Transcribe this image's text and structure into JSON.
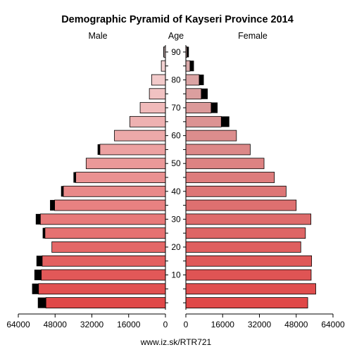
{
  "chart_data": {
    "type": "bar",
    "title": "Demographic Pyramid of Kayseri Province 2014",
    "left_label": "Male",
    "center_label": "Age",
    "right_label": "Female",
    "footer": "www.iz.sk/RTR721",
    "x_ticks": [
      "64000",
      "48000",
      "32000",
      "16000",
      "0",
      "16000",
      "32000",
      "48000",
      "64000"
    ],
    "age_ticks": [
      "10",
      "20",
      "30",
      "40",
      "50",
      "60",
      "70",
      "80",
      "90"
    ],
    "xlim": [
      0,
      64000
    ],
    "age_groups": [
      "0-4",
      "5-9",
      "10-14",
      "15-19",
      "20-24",
      "25-29",
      "30-34",
      "35-39",
      "40-44",
      "45-49",
      "50-54",
      "55-59",
      "60-64",
      "65-69",
      "70-74",
      "75-79",
      "80-84",
      "85-89",
      "90+"
    ],
    "series": [
      {
        "name": "Male",
        "values": [
          52000,
          55200,
          54000,
          53600,
          49400,
          52400,
          54400,
          48200,
          44400,
          39000,
          34500,
          28500,
          22200,
          15500,
          11000,
          7000,
          6000,
          1800,
          600
        ],
        "excess": [
          3500,
          2800,
          3000,
          2500,
          0,
          1000,
          2000,
          2000,
          1000,
          1000,
          0,
          1000,
          0,
          0,
          0,
          0,
          0,
          0,
          300
        ]
      },
      {
        "name": "Female",
        "values": [
          53000,
          56500,
          54500,
          54700,
          50000,
          52000,
          54400,
          48000,
          43600,
          38500,
          34000,
          28000,
          22000,
          15400,
          11000,
          6700,
          5800,
          1800,
          500
        ],
        "excess": [
          0,
          0,
          0,
          0,
          0,
          0,
          0,
          0,
          0,
          0,
          0,
          0,
          0,
          3500,
          2800,
          2800,
          2000,
          1700,
          800
        ]
      }
    ],
    "colors": {
      "male_young": "#e04848",
      "male_old": "#f4dada",
      "female_young": "#e04848",
      "female_old": "#dab0b0",
      "excess": "#000000"
    }
  }
}
